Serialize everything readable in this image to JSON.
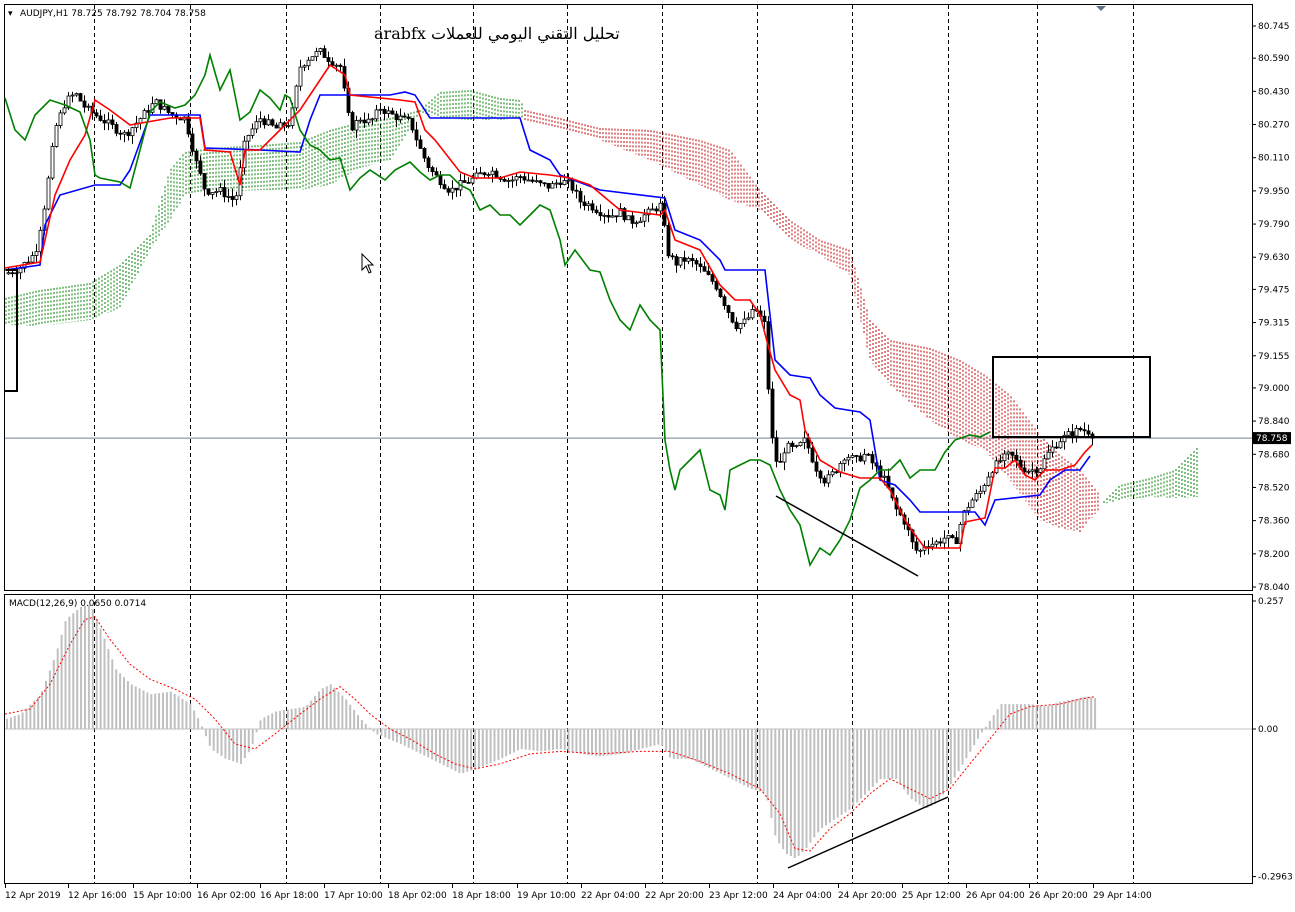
{
  "header": {
    "symbol_info": "AUDJPY,H1  78.725 78.792 78.704 78.758",
    "title": "arabfx تحليل التقني اليومي للعملات"
  },
  "macd": {
    "label": "MACD(12,26,9) 0.0650 0.0714"
  },
  "price_axis": {
    "ticks": [
      "80.745",
      "80.590",
      "80.430",
      "80.270",
      "80.110",
      "79.950",
      "79.790",
      "79.630",
      "79.475",
      "79.315",
      "79.155",
      "79.000",
      "78.840",
      "78.680",
      "78.520",
      "78.360",
      "78.200",
      "78.040"
    ],
    "current": "78.758"
  },
  "macd_axis": {
    "ticks": [
      "0.257",
      "0.00",
      "-0.2963"
    ]
  },
  "time_axis": {
    "labels": [
      "12 Apr 2019",
      "12 Apr 16:00",
      "15 Apr 10:00",
      "16 Apr 02:00",
      "16 Apr 18:00",
      "17 Apr 10:00",
      "18 Apr 02:00",
      "18 Apr 18:00",
      "19 Apr 10:00",
      "22 Apr 04:00",
      "22 Apr 20:00",
      "23 Apr 12:00",
      "24 Apr 04:00",
      "24 Apr 20:00",
      "25 Apr 12:00",
      "26 Apr 04:00",
      "26 Apr 20:00",
      "29 Apr 14:00"
    ]
  },
  "colors": {
    "tenkan": "#ff0000",
    "kijun": "#0000ff",
    "chikou": "#008000",
    "kumo_bull": "#008000",
    "kumo_bear": "#c00000",
    "histogram": "#c0c0c0",
    "signal": "#ff0000",
    "grid": "#000000",
    "current_line": "#708090"
  },
  "chart_data": [
    {
      "type": "candlestick",
      "title": "AUDJPY,H1",
      "ylim": [
        78.04,
        80.745
      ],
      "current_price": 78.758,
      "key_prices": {
        "start_close": 79.56,
        "high_17_apr": 80.66,
        "low_23_apr": 79.28,
        "low_25_apr": 78.09,
        "last": 78.758
      },
      "indicators": [
        "Tenkan-sen (red)",
        "Kijun-sen (blue)",
        "Chikou span (green)",
        "Ichimoku cloud"
      ],
      "annotations": [
        "rectangle 78.76–79.15 near 26–29 Apr",
        "falling trendline 24 Apr → 25 Apr lows"
      ]
    },
    {
      "type": "bar",
      "title": "MACD(12,26,9)",
      "values_summary": {
        "main": 0.065,
        "signal": 0.0714
      },
      "ylim": [
        -0.2963,
        0.257
      ],
      "annotations": [
        "rising trendline from 24 Apr low to 25 Apr low (bullish divergence)"
      ]
    }
  ]
}
